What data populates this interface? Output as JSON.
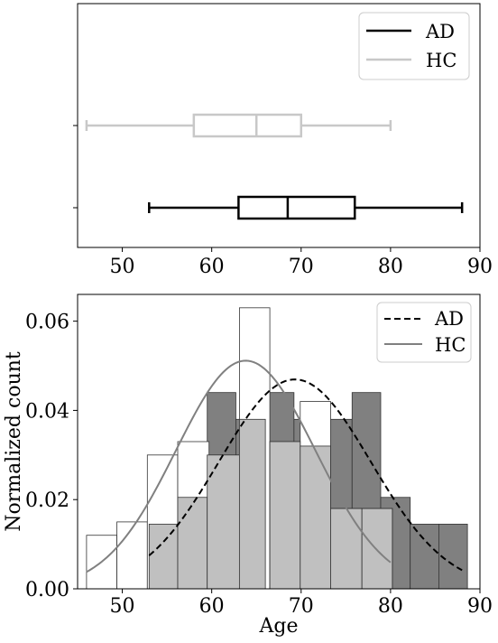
{
  "chart_data": [
    {
      "type": "boxplot",
      "orientation": "horizontal",
      "xlim": [
        45,
        90
      ],
      "xticks": [
        50,
        60,
        70,
        80,
        90
      ],
      "legend": {
        "placement": "top-right",
        "entries": [
          "AD",
          "HC"
        ]
      },
      "series": [
        {
          "name": "AD",
          "color": "#000000",
          "whisker_low": 53,
          "q1": 63,
          "median": 68.5,
          "q3": 76,
          "whisker_high": 88
        },
        {
          "name": "HC",
          "color": "#c8c8c8",
          "whisker_low": 46,
          "q1": 58,
          "median": 65,
          "q3": 70,
          "whisker_high": 80
        }
      ]
    },
    {
      "type": "histogram",
      "xlabel": "Age",
      "ylabel": "Normalized count",
      "xlim": [
        45,
        90
      ],
      "ylim": [
        0,
        0.066
      ],
      "xticks": [
        50,
        60,
        70,
        80,
        90
      ],
      "yticks": [
        0.0,
        0.02,
        0.04,
        0.06
      ],
      "ytick_labels": [
        "0.00",
        "0.02",
        "0.04",
        "0.06"
      ],
      "legend": {
        "placement": "top-right",
        "entries": [
          {
            "name": "AD",
            "style": "dashed"
          },
          {
            "name": "HC",
            "style": "solid"
          }
        ]
      },
      "layers": [
        {
          "name": "AD",
          "fill": "#808080",
          "bins": [
            {
              "x0": 53,
              "x1": 56.2,
              "value": 0.0145
            },
            {
              "x0": 56.2,
              "x1": 59.5,
              "value": 0.0205
            },
            {
              "x0": 59.5,
              "x1": 62.7,
              "value": 0.044
            },
            {
              "x0": 62.7,
              "x1": 66.0,
              "value": 0.038
            },
            {
              "x0": 66.0,
              "x1": 69.2,
              "value": 0.044
            },
            {
              "x0": 69.2,
              "x1": 72.5,
              "value": 0.038
            },
            {
              "x0": 72.5,
              "x1": 75.7,
              "value": 0.038
            },
            {
              "x0": 75.7,
              "x1": 78.9,
              "value": 0.044
            },
            {
              "x0": 78.9,
              "x1": 82.2,
              "value": 0.0205
            },
            {
              "x0": 82.2,
              "x1": 85.4,
              "value": 0.0145
            },
            {
              "x0": 85.4,
              "x1": 88.6,
              "value": 0.0145
            }
          ]
        },
        {
          "name": "HC",
          "fill": "#ffffff",
          "bins": [
            {
              "x0": 46,
              "x1": 49.4,
              "value": 0.012
            },
            {
              "x0": 49.4,
              "x1": 52.8,
              "value": 0.015
            },
            {
              "x0": 52.8,
              "x1": 56.2,
              "value": 0.03
            },
            {
              "x0": 56.2,
              "x1": 59.7,
              "value": 0.033
            },
            {
              "x0": 59.7,
              "x1": 63.1,
              "value": 0.03
            },
            {
              "x0": 63.1,
              "x1": 66.5,
              "value": 0.063
            },
            {
              "x0": 66.5,
              "x1": 69.9,
              "value": 0.033
            },
            {
              "x0": 69.9,
              "x1": 73.3,
              "value": 0.042
            },
            {
              "x0": 73.3,
              "x1": 76.8,
              "value": 0.018
            },
            {
              "x0": 76.8,
              "x1": 80.2,
              "value": 0.018
            }
          ]
        },
        {
          "name": "overlap",
          "fill": "#c0c0c0",
          "bins": [
            {
              "x0": 53,
              "x1": 56.2,
              "value": 0.0145
            },
            {
              "x0": 56.2,
              "x1": 59.5,
              "value": 0.0205
            },
            {
              "x0": 59.5,
              "x1": 63.1,
              "value": 0.03
            },
            {
              "x0": 63.1,
              "x1": 66.0,
              "value": 0.038
            },
            {
              "x0": 66.5,
              "x1": 69.9,
              "value": 0.033
            },
            {
              "x0": 69.9,
              "x1": 73.3,
              "value": 0.032
            },
            {
              "x0": 73.3,
              "x1": 76.8,
              "value": 0.018
            },
            {
              "x0": 76.8,
              "x1": 80.2,
              "value": 0.018
            }
          ]
        }
      ],
      "curves": [
        {
          "name": "AD",
          "style": "dashed",
          "color": "#000000",
          "mean": 69.3,
          "sd": 8.5,
          "x_range": [
            53,
            88
          ]
        },
        {
          "name": "HC",
          "style": "solid",
          "color": "#808080",
          "mean": 63.8,
          "sd": 7.8,
          "x_range": [
            46,
            80
          ]
        }
      ]
    }
  ]
}
